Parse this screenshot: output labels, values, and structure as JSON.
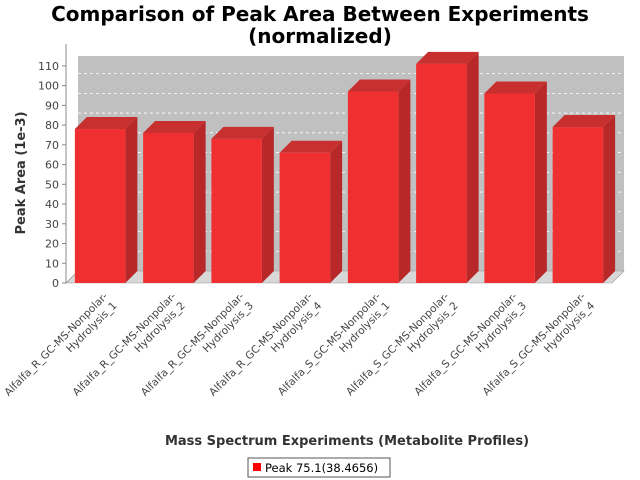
{
  "chart_data": {
    "type": "bar",
    "title_lines": [
      "Comparison of Peak Area Between Experiments",
      "(normalized)"
    ],
    "xlabel": "Mass Spectrum Experiments (Metabolite Profiles)",
    "ylabel": "Peak Area (1e-3)",
    "categories": [
      [
        "Alfalfa_R_GC-MS-Nonpolar-",
        "Hydrolysis_1"
      ],
      [
        "Alfalfa_R_GC-MS-Nonpolar-",
        "Hydrolysis_2"
      ],
      [
        "Alfalfa_R_GC-MS-Nonpolar-",
        "Hydrolysis_3"
      ],
      [
        "Alfalfa_R_GC-MS-Nonpolar-",
        "Hydrolysis_4"
      ],
      [
        "Alfalfa_S_GC-MS-Nonpolar-",
        "Hydrolysis_1"
      ],
      [
        "Alfalfa_S_GC-MS-Nonpolar-",
        "Hydrolysis_2"
      ],
      [
        "Alfalfa_S_GC-MS-Nonpolar-",
        "Hydrolysis_3"
      ],
      [
        "Alfalfa_S_GC-MS-Nonpolar-",
        "Hydrolysis_4"
      ]
    ],
    "series": [
      {
        "name": "Peak 75.1(38.4656)",
        "values": [
          78,
          76,
          73,
          66,
          97,
          111,
          96,
          79
        ]
      }
    ],
    "ylim": [
      0,
      115
    ],
    "yticks": [
      0,
      10,
      20,
      30,
      40,
      50,
      60,
      70,
      80,
      90,
      100,
      110
    ],
    "grid": true,
    "legend_position": "bottom",
    "colors": {
      "bar_front": "#f03030",
      "bar_side": "#b82828",
      "bar_top": "#c83030",
      "plot_back": "#c0c0c0",
      "plot_floor": "#d8d8d8",
      "legend_swatch": "#ff0000"
    }
  }
}
